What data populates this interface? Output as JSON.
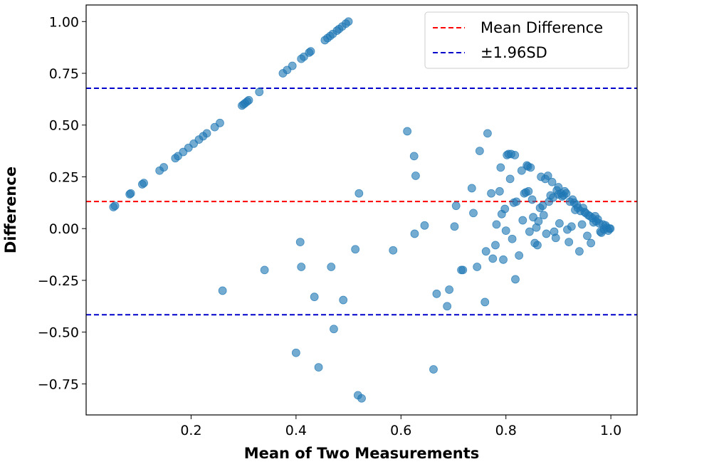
{
  "chart_data": {
    "type": "scatter",
    "title": "",
    "xlabel": "Mean of Two Measurements",
    "ylabel": "Difference",
    "xlim": [
      0.0,
      1.05
    ],
    "ylim": [
      -0.9,
      1.08
    ],
    "xticks": [
      0.2,
      0.4,
      0.6,
      0.8,
      1.0
    ],
    "xtick_labels": [
      "0.2",
      "0.4",
      "0.6",
      "0.8",
      "1.0"
    ],
    "yticks": [
      -0.75,
      -0.5,
      -0.25,
      0.0,
      0.25,
      0.5,
      0.75,
      1.0
    ],
    "ytick_labels": [
      "−0.75",
      "−0.50",
      "−0.25",
      "0.00",
      "0.25",
      "0.50",
      "0.75",
      "1.00"
    ],
    "grid": false,
    "legend_position": "top-right",
    "colors": {
      "points": "#1f77b4",
      "mean_line": "#ff0000",
      "sd_lines": "#0000cc"
    },
    "reference_lines": [
      {
        "name": "Mean Difference",
        "value": 0.131,
        "color": "#ff0000",
        "style": "dashed"
      },
      {
        "name": "±1.96SD",
        "value": 0.678,
        "color": "#0000cc",
        "style": "dashed"
      },
      {
        "name": "±1.96SD",
        "value": -0.416,
        "color": "#0000cc",
        "style": "dashed"
      }
    ],
    "legend": [
      {
        "label": "Mean Difference",
        "color": "#ff0000"
      },
      {
        "label": "±1.96SD",
        "color": "#0000cc"
      }
    ],
    "series": [
      {
        "name": "points",
        "points": [
          [
            0.052,
            0.104
          ],
          [
            0.055,
            0.11
          ],
          [
            0.083,
            0.166
          ],
          [
            0.085,
            0.17
          ],
          [
            0.107,
            0.214
          ],
          [
            0.11,
            0.22
          ],
          [
            0.14,
            0.28
          ],
          [
            0.148,
            0.296
          ],
          [
            0.17,
            0.34
          ],
          [
            0.175,
            0.35
          ],
          [
            0.185,
            0.37
          ],
          [
            0.195,
            0.39
          ],
          [
            0.205,
            0.41
          ],
          [
            0.215,
            0.43
          ],
          [
            0.223,
            0.446
          ],
          [
            0.23,
            0.46
          ],
          [
            0.245,
            0.49
          ],
          [
            0.255,
            0.51
          ],
          [
            0.297,
            0.594
          ],
          [
            0.3,
            0.6
          ],
          [
            0.303,
            0.606
          ],
          [
            0.307,
            0.614
          ],
          [
            0.31,
            0.62
          ],
          [
            0.33,
            0.66
          ],
          [
            0.375,
            0.75
          ],
          [
            0.383,
            0.766
          ],
          [
            0.393,
            0.786
          ],
          [
            0.41,
            0.82
          ],
          [
            0.415,
            0.83
          ],
          [
            0.425,
            0.85
          ],
          [
            0.428,
            0.856
          ],
          [
            0.455,
            0.91
          ],
          [
            0.46,
            0.92
          ],
          [
            0.465,
            0.93
          ],
          [
            0.47,
            0.94
          ],
          [
            0.478,
            0.956
          ],
          [
            0.482,
            0.964
          ],
          [
            0.488,
            0.976
          ],
          [
            0.495,
            0.99
          ],
          [
            0.5,
            1.0
          ],
          [
            0.26,
            -0.3
          ],
          [
            0.34,
            -0.2
          ],
          [
            0.4,
            -0.6
          ],
          [
            0.408,
            -0.065
          ],
          [
            0.41,
            -0.185
          ],
          [
            0.435,
            -0.33
          ],
          [
            0.443,
            -0.67
          ],
          [
            0.467,
            -0.185
          ],
          [
            0.472,
            -0.485
          ],
          [
            0.49,
            -0.345
          ],
          [
            0.513,
            -0.1
          ],
          [
            0.518,
            -0.805
          ],
          [
            0.52,
            0.17
          ],
          [
            0.525,
            -0.82
          ],
          [
            0.585,
            -0.105
          ],
          [
            0.612,
            0.47
          ],
          [
            0.625,
            0.35
          ],
          [
            0.626,
            -0.025
          ],
          [
            0.628,
            0.255
          ],
          [
            0.645,
            0.015
          ],
          [
            0.662,
            -0.68
          ],
          [
            0.668,
            -0.315
          ],
          [
            0.688,
            -0.375
          ],
          [
            0.692,
            -0.295
          ],
          [
            0.702,
            0.01
          ],
          [
            0.705,
            0.11
          ],
          [
            0.715,
            -0.2
          ],
          [
            0.718,
            -0.2
          ],
          [
            0.735,
            0.195
          ],
          [
            0.738,
            0.075
          ],
          [
            0.745,
            -0.185
          ],
          [
            0.75,
            0.375
          ],
          [
            0.76,
            -0.355
          ],
          [
            0.762,
            -0.11
          ],
          [
            0.765,
            0.46
          ],
          [
            0.772,
            0.17
          ],
          [
            0.775,
            -0.145
          ],
          [
            0.78,
            -0.08
          ],
          [
            0.782,
            0.02
          ],
          [
            0.788,
            0.18
          ],
          [
            0.79,
            0.295
          ],
          [
            0.792,
            0.07
          ],
          [
            0.795,
            -0.15
          ],
          [
            0.798,
            0.095
          ],
          [
            0.8,
            -0.01
          ],
          [
            0.802,
            0.355
          ],
          [
            0.805,
            0.36
          ],
          [
            0.808,
            0.24
          ],
          [
            0.81,
            0.36
          ],
          [
            0.812,
            -0.05
          ],
          [
            0.815,
            0.125
          ],
          [
            0.817,
            0.355
          ],
          [
            0.818,
            -0.245
          ],
          [
            0.82,
            0.13
          ],
          [
            0.825,
            -0.13
          ],
          [
            0.83,
            0.28
          ],
          [
            0.832,
            0.04
          ],
          [
            0.835,
            0.17
          ],
          [
            0.838,
            0.175
          ],
          [
            0.84,
            0.305
          ],
          [
            0.842,
            0.3
          ],
          [
            0.843,
            0.18
          ],
          [
            0.845,
            -0.015
          ],
          [
            0.847,
            0.295
          ],
          [
            0.85,
            0.14
          ],
          [
            0.852,
            0.055
          ],
          [
            0.855,
            -0.07
          ],
          [
            0.858,
            0.005
          ],
          [
            0.86,
            -0.08
          ],
          [
            0.862,
            0.035
          ],
          [
            0.865,
            0.1
          ],
          [
            0.867,
            0.25
          ],
          [
            0.87,
            0.11
          ],
          [
            0.872,
            0.065
          ],
          [
            0.875,
            0.24
          ],
          [
            0.877,
            -0.025
          ],
          [
            0.88,
            0.255
          ],
          [
            0.882,
            0.13
          ],
          [
            0.885,
            0.16
          ],
          [
            0.888,
            0.225
          ],
          [
            0.89,
            0.15
          ],
          [
            0.892,
            -0.015
          ],
          [
            0.895,
            -0.045
          ],
          [
            0.897,
            0.185
          ],
          [
            0.9,
            0.2
          ],
          [
            0.9,
            0.165
          ],
          [
            0.902,
            0.025
          ],
          [
            0.905,
            0.17
          ],
          [
            0.907,
            0.155
          ],
          [
            0.91,
            0.16
          ],
          [
            0.912,
            0.18
          ],
          [
            0.915,
            0.17
          ],
          [
            0.917,
            -0.005
          ],
          [
            0.92,
            -0.065
          ],
          [
            0.922,
            0.13
          ],
          [
            0.925,
            0.01
          ],
          [
            0.927,
            0.14
          ],
          [
            0.93,
            0.125
          ],
          [
            0.932,
            0.09
          ],
          [
            0.935,
            0.115
          ],
          [
            0.937,
            0.1
          ],
          [
            0.94,
            -0.11
          ],
          [
            0.942,
            0.085
          ],
          [
            0.945,
            0.02
          ],
          [
            0.947,
            0.1
          ],
          [
            0.95,
            0.08
          ],
          [
            0.952,
            0.075
          ],
          [
            0.955,
            -0.035
          ],
          [
            0.957,
            0.065
          ],
          [
            0.96,
            0.06
          ],
          [
            0.962,
            -0.07
          ],
          [
            0.965,
            0.05
          ],
          [
            0.967,
            0.03
          ],
          [
            0.97,
            0.06
          ],
          [
            0.972,
            0.035
          ],
          [
            0.975,
            0.045
          ],
          [
            0.978,
            0.025
          ],
          [
            0.98,
            -0.015
          ],
          [
            0.982,
            -0.02
          ],
          [
            0.985,
            0.02
          ],
          [
            0.987,
            -0.005
          ],
          [
            0.99,
            0.015
          ],
          [
            0.992,
            0.005
          ],
          [
            0.995,
            -0.01
          ],
          [
            0.997,
            0.0
          ],
          [
            0.999,
            0.0
          ]
        ]
      }
    ]
  }
}
